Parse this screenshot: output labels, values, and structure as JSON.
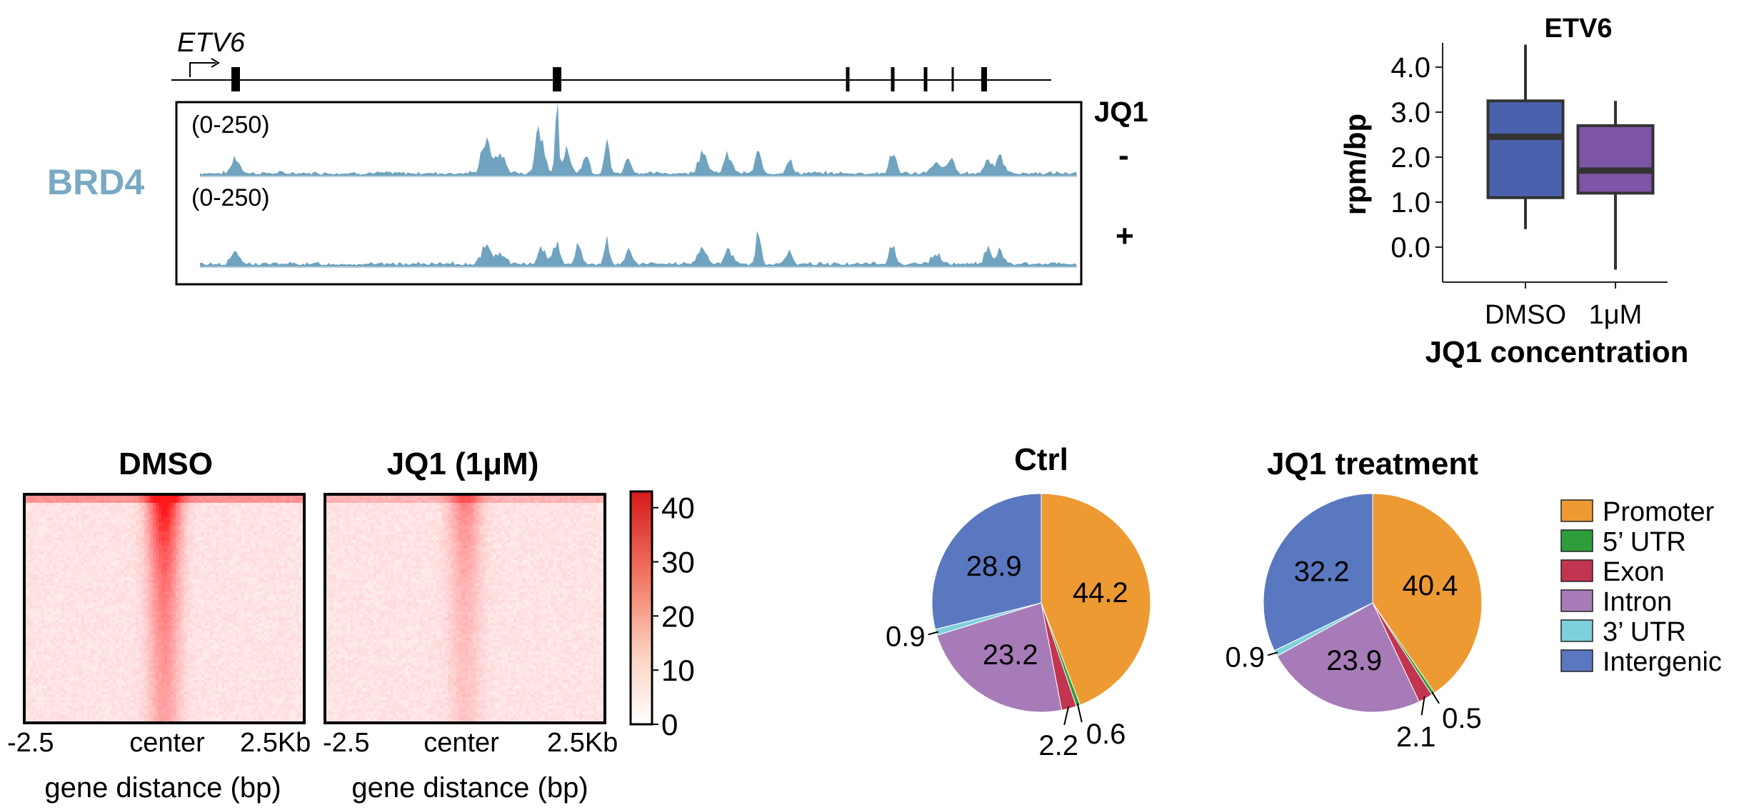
{
  "colors": {
    "track": "#6fa3bf",
    "brd4_label": "#79a9c4",
    "dmso_box": "#4a62ad",
    "jq1_box": "#7d55a6",
    "heat_max": "#d7191c",
    "promoter": "#ed9a33",
    "utr5": "#2e9e3a",
    "exon": "#c23550",
    "intron": "#a77bb8",
    "utr3": "#7fd0de",
    "intergenic": "#5a78bf"
  },
  "track_panel": {
    "gene": "ETV6",
    "brd4_label": "BRD4",
    "range_label_1": "(0-250)",
    "range_label_2": "(0-250)",
    "jq1_label": "JQ1",
    "minus_label": "-",
    "plus_label": "+"
  },
  "chart_data": [
    {
      "type": "box",
      "title": "ETV6",
      "ylabel": "rpm/bp",
      "xlabel": "JQ1 concentration",
      "categories": [
        "DMSO",
        "1μM"
      ],
      "yticks": [
        "0.0",
        "1.0",
        "2.0",
        "3.0",
        "4.0"
      ],
      "ylim": [
        -0.5,
        4.5
      ],
      "boxes": [
        {
          "name": "DMSO",
          "min": 0.4,
          "q1": 1.1,
          "median": 2.45,
          "q3": 3.25,
          "max": 4.5
        },
        {
          "name": "1μM",
          "min": -0.5,
          "q1": 1.2,
          "median": 1.7,
          "q3": 2.7,
          "max": 3.25
        }
      ]
    },
    {
      "type": "heatmap",
      "panels": [
        {
          "title": "DMSO",
          "center_intensity": 1.0
        },
        {
          "title": "JQ1 (1μM)",
          "center_intensity": 0.45
        }
      ],
      "xticks_1": [
        "-2.5",
        "center",
        "2.5Kb"
      ],
      "xticks_2": [
        "-2.5",
        "center",
        "2.5Kb"
      ],
      "xlabel": "gene distance (bp)",
      "colorbar_ticks": [
        "0",
        "10",
        "20",
        "30",
        "40"
      ],
      "colorbar_range": [
        0,
        43
      ]
    },
    {
      "type": "pie",
      "pies": [
        {
          "title": "Ctrl",
          "slices": [
            {
              "name": "Promoter",
              "value": 44.2,
              "label": "44.2"
            },
            {
              "name": "5' UTR",
              "value": 0.6,
              "label": "0.6"
            },
            {
              "name": "Exon",
              "value": 2.2,
              "label": "2.2"
            },
            {
              "name": "Intron",
              "value": 23.2,
              "label": "23.2"
            },
            {
              "name": "3' UTR",
              "value": 0.9,
              "label": "0.9"
            },
            {
              "name": "Intergenic",
              "value": 28.9,
              "label": "28.9"
            }
          ]
        },
        {
          "title": "JQ1 treatment",
          "slices": [
            {
              "name": "Promoter",
              "value": 40.4,
              "label": "40.4"
            },
            {
              "name": "5' UTR",
              "value": 0.5,
              "label": "0.5"
            },
            {
              "name": "Exon",
              "value": 2.1,
              "label": "2.1"
            },
            {
              "name": "Intron",
              "value": 23.9,
              "label": "23.9"
            },
            {
              "name": "3' UTR",
              "value": 0.9,
              "label": "0.9"
            },
            {
              "name": "Intergenic",
              "value": 32.2,
              "label": "32.2"
            }
          ]
        }
      ],
      "legend": [
        "Promoter",
        "5’ UTR",
        "Exon",
        "Intron",
        "3’ UTR",
        "Intergenic"
      ]
    }
  ]
}
